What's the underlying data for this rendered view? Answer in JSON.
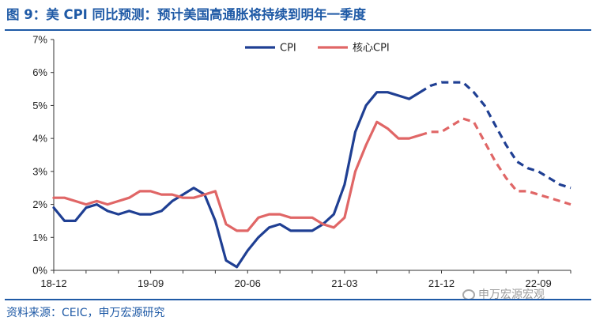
{
  "title": "图 9：美 CPI 同比预测：预计美国高通胀将持续到明年一季度",
  "source": "资料来源：CEIC，申万宏源研究",
  "watermark": "申万宏源宏观",
  "colors": {
    "title_blue": "#1f5aa6",
    "cpi": "#1f3f93",
    "core_cpi": "#e06666"
  },
  "chart_data": {
    "type": "line",
    "title": "",
    "xlabel": "",
    "ylabel": "",
    "ylim": [
      0,
      7
    ],
    "yticks": [
      "0%",
      "1%",
      "2%",
      "3%",
      "4%",
      "5%",
      "6%",
      "7%"
    ],
    "xticks": [
      "18-12",
      "19-09",
      "20-06",
      "21-03",
      "21-12",
      "22-09"
    ],
    "grid": false,
    "legend_position": "top-center",
    "x_start": "2018-12",
    "x_end": "2022-12",
    "forecast_from": "2021-10",
    "series": [
      {
        "name": "CPI",
        "color": "#1f3f93",
        "values": [
          1.9,
          1.5,
          1.5,
          1.9,
          2.0,
          1.8,
          1.7,
          1.8,
          1.7,
          1.7,
          1.8,
          2.1,
          2.3,
          2.5,
          2.3,
          1.5,
          0.3,
          0.1,
          0.6,
          1.0,
          1.3,
          1.4,
          1.2,
          1.2,
          1.2,
          1.4,
          1.7,
          2.6,
          4.2,
          5.0,
          5.4,
          5.4,
          5.3,
          5.2,
          5.4,
          5.6,
          5.7,
          5.7,
          5.7,
          5.4,
          5.0,
          4.4,
          3.8,
          3.3,
          3.1,
          3.0,
          2.8,
          2.6,
          2.5
        ]
      },
      {
        "name": "核心CPI",
        "color": "#e06666",
        "values": [
          2.2,
          2.2,
          2.1,
          2.0,
          2.1,
          2.0,
          2.1,
          2.2,
          2.4,
          2.4,
          2.3,
          2.3,
          2.2,
          2.2,
          2.3,
          2.4,
          1.4,
          1.2,
          1.2,
          1.6,
          1.7,
          1.7,
          1.6,
          1.6,
          1.6,
          1.4,
          1.3,
          1.6,
          3.0,
          3.8,
          4.5,
          4.3,
          4.0,
          4.0,
          4.1,
          4.2,
          4.2,
          4.4,
          4.6,
          4.5,
          3.9,
          3.3,
          2.8,
          2.4,
          2.4,
          2.3,
          2.2,
          2.1,
          2.0
        ]
      }
    ]
  }
}
